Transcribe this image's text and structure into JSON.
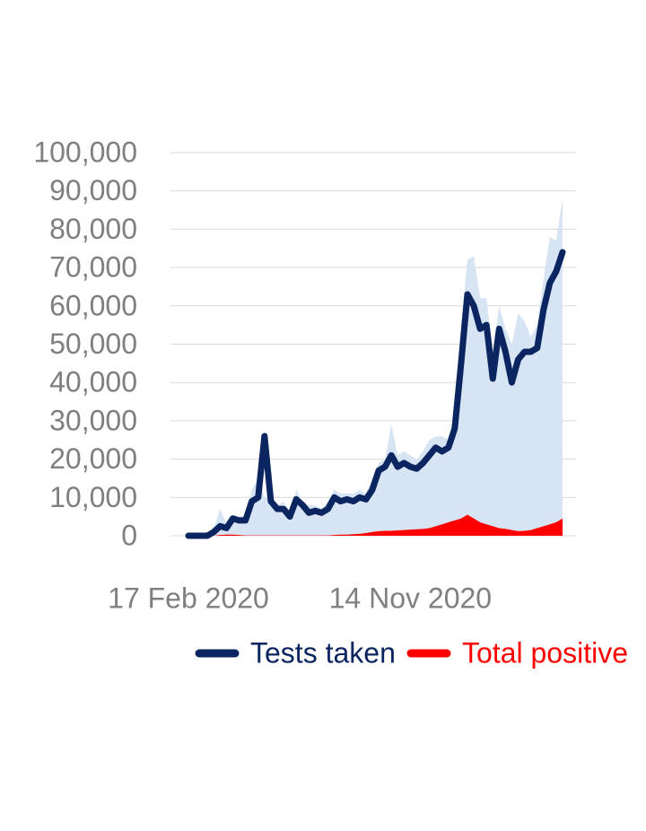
{
  "chart_data": {
    "type": "line",
    "categories": [
      "17 Feb 2020",
      null,
      null,
      null,
      null,
      null,
      null,
      null,
      null,
      null,
      null,
      null,
      null,
      null,
      null,
      null,
      null,
      null,
      null,
      null,
      null,
      null,
      null,
      null,
      null,
      null,
      null,
      null,
      null,
      null,
      null,
      null,
      null,
      null,
      null,
      "14 Nov 2020",
      null,
      null,
      null,
      null,
      null,
      null,
      null,
      null,
      null,
      null,
      null,
      null,
      null,
      null,
      null,
      null,
      null,
      null,
      null,
      null,
      null,
      null,
      null,
      null
    ],
    "series": [
      {
        "color": "#d6e4f3",
        "style": "area",
        "values": [
          0,
          0,
          0,
          0,
          2000,
          7000,
          3000,
          5000,
          5000,
          5000,
          12000,
          15000,
          10000,
          10000,
          8000,
          9000,
          6000,
          12000,
          9000,
          8000,
          8000,
          7000,
          9000,
          12000,
          11000,
          11000,
          11000,
          12000,
          11000,
          15000,
          19000,
          20000,
          29000,
          21000,
          22000,
          21000,
          20000,
          22000,
          25000,
          26000,
          26000,
          25000,
          33000,
          55000,
          72000,
          73000,
          62000,
          62000,
          48000,
          60000,
          54000,
          50000,
          58000,
          56000,
          52000,
          55000,
          67000,
          78000,
          77000,
          88000
        ]
      },
      {
        "name": "Total positive",
        "color": "#ff0000",
        "style": "area",
        "values": [
          0,
          0,
          0,
          0,
          0,
          200,
          300,
          300,
          200,
          100,
          100,
          100,
          100,
          100,
          100,
          100,
          100,
          100,
          100,
          100,
          100,
          100,
          100,
          200,
          300,
          300,
          400,
          500,
          700,
          1000,
          1200,
          1300,
          1300,
          1400,
          1500,
          1600,
          1700,
          1800,
          2000,
          2500,
          3000,
          3500,
          4000,
          4500,
          5500,
          4500,
          3500,
          3000,
          2500,
          2000,
          1800,
          1500,
          1200,
          1300,
          1500,
          2000,
          2500,
          3000,
          3500,
          4500
        ]
      },
      {
        "name": "Tests taken",
        "color": "#0b2560",
        "style": "line",
        "values": [
          0,
          0,
          0,
          0,
          1000,
          2500,
          2000,
          4500,
          4000,
          4000,
          9000,
          10000,
          26000,
          9000,
          7000,
          7000,
          5000,
          9500,
          8000,
          6000,
          6500,
          6000,
          7000,
          10000,
          9000,
          9500,
          9000,
          10000,
          9500,
          12000,
          17000,
          18000,
          21000,
          18000,
          19000,
          18000,
          17500,
          19000,
          21000,
          23000,
          22000,
          23000,
          28000,
          45000,
          63000,
          60000,
          54000,
          55000,
          41000,
          54000,
          48000,
          40000,
          46000,
          48000,
          48000,
          49000,
          59000,
          66000,
          69000,
          74000
        ]
      }
    ],
    "ylim": [
      0,
      100000
    ],
    "yticks": [
      0,
      {
        "value": 10000,
        "label": "10,000"
      },
      {
        "value": 20000,
        "label": "20,000"
      },
      {
        "value": 30000,
        "label": "30,000"
      },
      {
        "value": 40000,
        "label": "40,000"
      },
      {
        "value": 50000,
        "label": "50,000"
      },
      {
        "value": 60000,
        "label": "60,000"
      },
      {
        "value": 70000,
        "label": "70,000"
      },
      {
        "value": 80000,
        "label": "80,000"
      },
      {
        "value": 90000,
        "label": "90,000"
      },
      {
        "value": 100000,
        "label": "100,000"
      }
    ],
    "grid": true,
    "legend": "bottom"
  }
}
